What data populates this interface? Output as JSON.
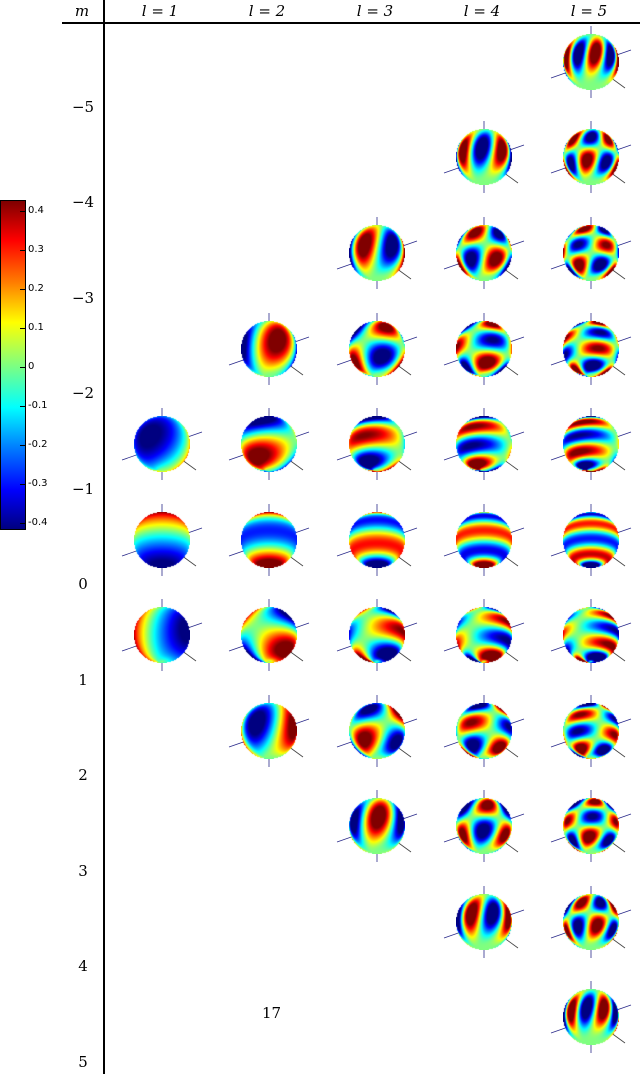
{
  "header": {
    "m_label": "m",
    "columns": [
      "l = 1",
      "l = 2",
      "l = 3",
      "l = 4",
      "l = 5"
    ]
  },
  "row_labels": [
    "−5",
    "−4",
    "−3",
    "−2",
    "−1",
    "0",
    "1",
    "2",
    "3",
    "4",
    "5"
  ],
  "colorbar": {
    "ticks": [
      "0.4",
      "0.3",
      "0.2",
      "0.1",
      "0",
      "-0.1",
      "-0.2",
      "-0.3",
      "-0.4"
    ],
    "colormap": "jet",
    "range": [
      -0.45,
      0.45
    ]
  },
  "grid": {
    "l_values": [
      1,
      2,
      3,
      4,
      5
    ],
    "m_values": [
      -5,
      -4,
      -3,
      -2,
      -1,
      0,
      1,
      2,
      3,
      4,
      5
    ]
  },
  "page_number": "17"
}
